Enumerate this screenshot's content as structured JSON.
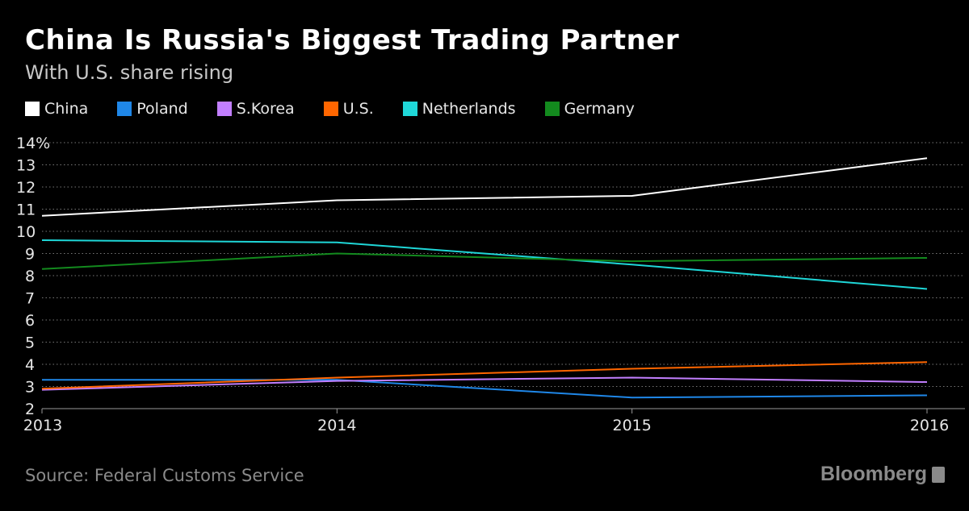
{
  "title": "China Is Russia's Biggest Trading Partner",
  "subtitle": "With U.S. share rising",
  "source": "Source: Federal Customs Service",
  "brand": "Bloomberg",
  "chart_data": {
    "type": "line",
    "x": [
      "2013",
      "2014",
      "2015",
      "2016"
    ],
    "ylim": [
      2,
      14
    ],
    "yticks": [
      "2",
      "3",
      "4",
      "5",
      "6",
      "7",
      "8",
      "9",
      "10",
      "11",
      "12",
      "13",
      "14%"
    ],
    "grid": true,
    "legend_placement": "top",
    "series": [
      {
        "name": "China",
        "color": "#ffffff",
        "values": [
          10.7,
          11.4,
          11.6,
          13.3
        ]
      },
      {
        "name": "Poland",
        "color": "#1f87e8",
        "values": [
          3.3,
          3.3,
          2.5,
          2.6
        ]
      },
      {
        "name": "S.Korea",
        "color": "#c27fff",
        "values": [
          2.85,
          3.25,
          3.4,
          3.2
        ]
      },
      {
        "name": "U.S.",
        "color": "#ff6600",
        "values": [
          2.9,
          3.4,
          3.8,
          4.1
        ]
      },
      {
        "name": "Netherlands",
        "color": "#1fd7d8",
        "values": [
          9.6,
          9.5,
          8.5,
          7.4
        ]
      },
      {
        "name": "Germany",
        "color": "#138a1e",
        "values": [
          8.3,
          9.0,
          8.65,
          8.8
        ]
      }
    ]
  }
}
